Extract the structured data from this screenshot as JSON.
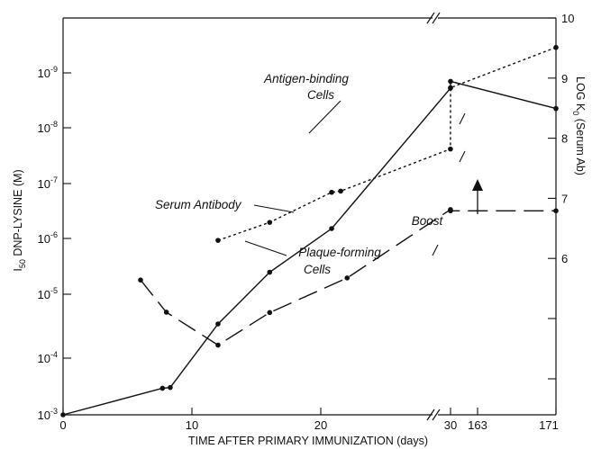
{
  "chart_data": {
    "type": "line",
    "xlabel": "TIME AFTER PRIMARY IMMUNIZATION (days)",
    "ylabel_left": "I50 DNP-LYSINE (M)",
    "ylabel_right": "LOG K0 (Serum Ab)",
    "x_ticks": [
      "0",
      "10",
      "20",
      "30",
      "163",
      "171"
    ],
    "y_left_ticks": [
      "10-9",
      "10-8",
      "10-7",
      "10-6",
      "10-5",
      "10-4",
      "10-3"
    ],
    "y_right_ticks": [
      "10",
      "9",
      "8",
      "7",
      "6"
    ],
    "series": [
      {
        "name": "Antigen-binding Cells",
        "style": "solid",
        "points": [
          [
            0,
            0.001
          ],
          [
            7.7,
            0.00033
          ],
          [
            8.3,
            0.00032
          ],
          [
            12,
            2.25e-05
          ],
          [
            16,
            2.6e-06
          ],
          [
            20.8,
            4.2e-07
          ],
          [
            30,
            1.2e-09
          ],
          [
            163,
            9e-10
          ],
          [
            171,
            2.8e-09
          ]
        ]
      },
      {
        "name": "Plaque-forming Cells",
        "style": "dashed",
        "points": [
          [
            6,
            3.6e-06
          ],
          [
            8,
            1.38e-05
          ],
          [
            12,
            5.45e-05
          ],
          [
            16,
            1.4e-05
          ],
          [
            22,
            3.3e-06
          ],
          [
            30,
            1.9e-07
          ],
          [
            163,
            2e-07
          ],
          [
            171,
            2e-07
          ]
        ]
      },
      {
        "name": "Serum Antibody",
        "style": "dotted",
        "axis": "right",
        "points": [
          [
            12,
            6.3
          ],
          [
            16,
            6.6
          ],
          [
            20.8,
            7.1
          ],
          [
            21.5,
            7.12
          ],
          [
            30,
            7.82
          ],
          [
            163,
            8.84
          ],
          [
            171,
            9.51
          ]
        ]
      }
    ],
    "annotations": [
      {
        "text": "Antigen-binding"
      },
      {
        "text": "Cells"
      },
      {
        "text": "Serum Antibody"
      },
      {
        "text": "Plaque-forming"
      },
      {
        "text": "Cells"
      },
      {
        "text": "Boost"
      }
    ]
  }
}
